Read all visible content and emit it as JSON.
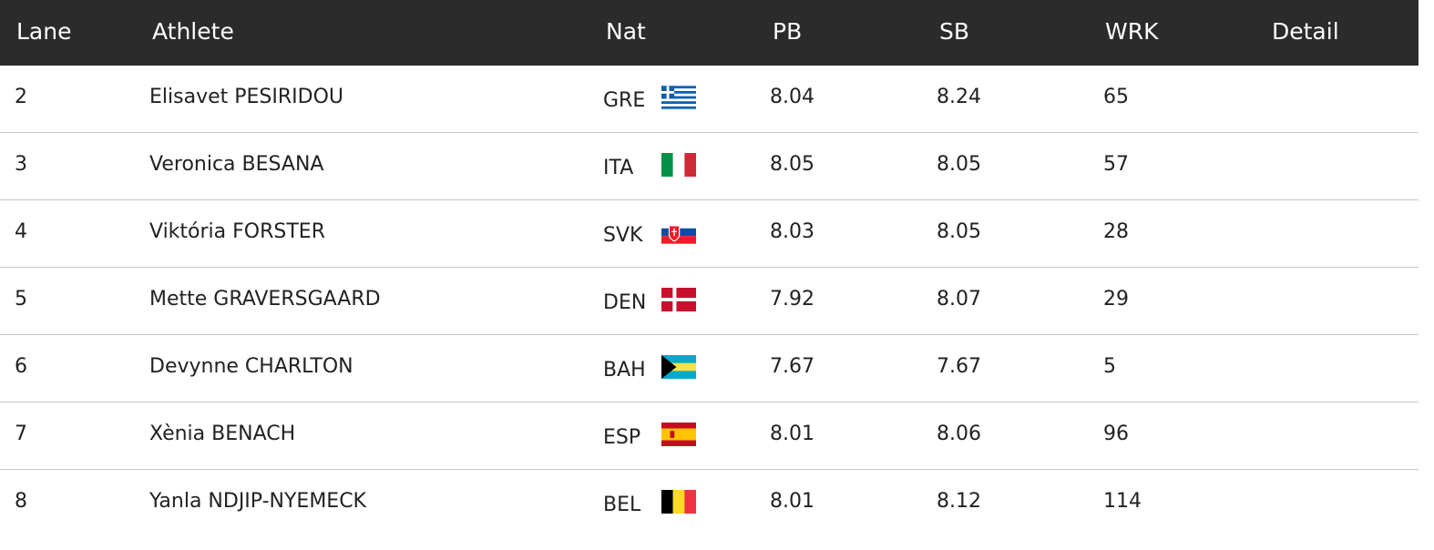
{
  "table": {
    "columns": [
      "Lane",
      "Athlete",
      "Nat",
      "PB",
      "SB",
      "WRK",
      "Detail"
    ],
    "rows": [
      [
        "2",
        "Elisavet PESIRIDOU",
        "GRE",
        "8.04",
        "8.24",
        "65"
      ],
      [
        "3",
        "Veronica BESANA",
        "ITA",
        "8.05",
        "8.05",
        "57"
      ],
      [
        "4",
        "Viktória FORSTER",
        "SVK",
        "8.03",
        "8.05",
        "28"
      ],
      [
        "5",
        "Mette GRAVERSGAARD",
        "DEN",
        "7.92",
        "8.07",
        "29"
      ],
      [
        "6",
        "Devynne CHARLTON",
        "BAH",
        "7.67",
        "7.67",
        "5"
      ],
      [
        "7",
        "Xènia BENACH",
        "ESP",
        "8.01",
        "8.06",
        "96"
      ],
      [
        "8",
        "Yanla NDJIP-NYEMECK",
        "BEL",
        "8.01",
        "8.12",
        "114"
      ]
    ]
  }
}
